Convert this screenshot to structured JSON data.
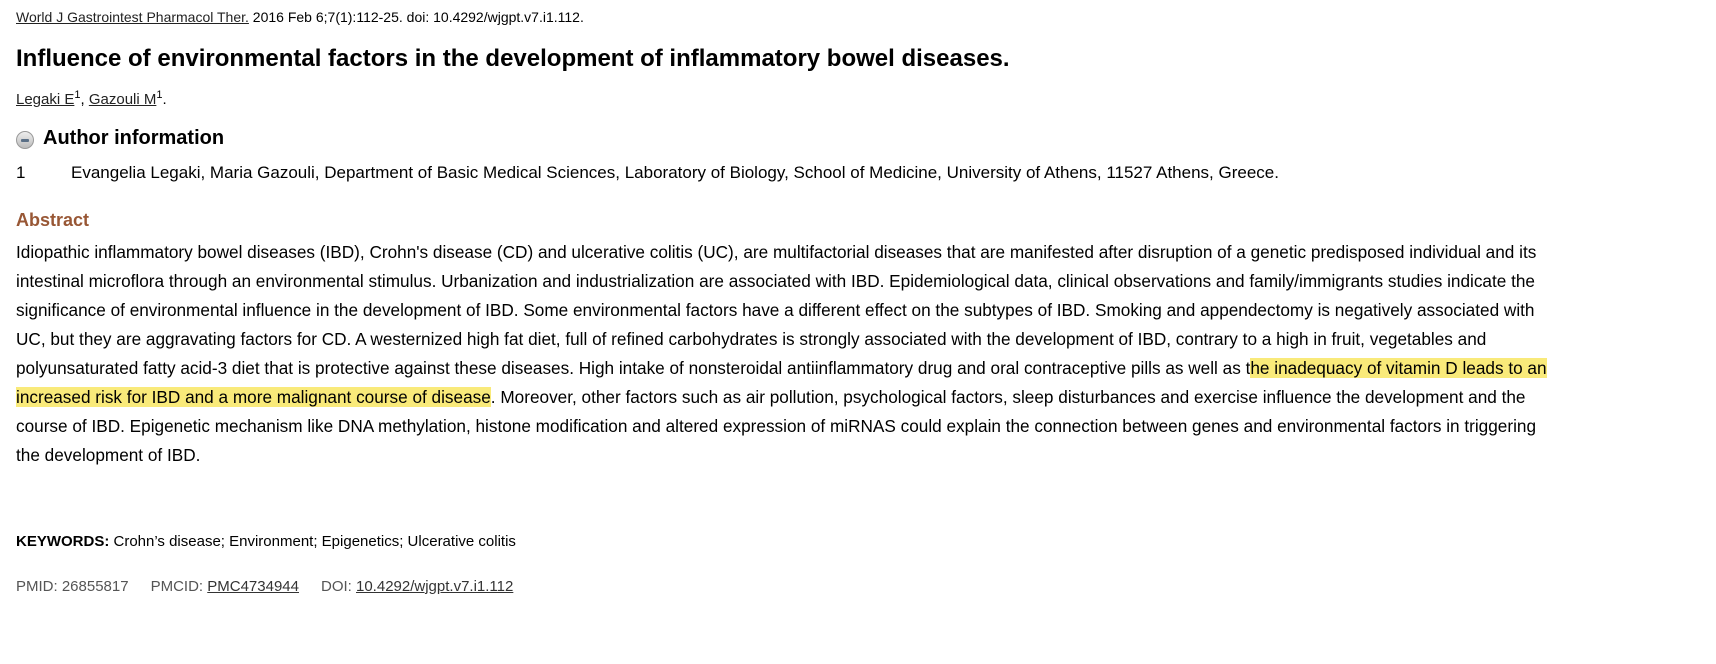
{
  "citation": {
    "journal": "World J Gastrointest Pharmacol Ther.",
    "details": " 2016 Feb 6;7(1):112-25. doi: 10.4292/wjgpt.v7.i1.112."
  },
  "title": "Influence of environmental factors in the development of inflammatory bowel diseases.",
  "authors": [
    {
      "name": "Legaki E",
      "sup": "1"
    },
    {
      "name": "Gazouli M",
      "sup": "1"
    }
  ],
  "author_info": {
    "label": "Author information",
    "icon": "collapse-minus-icon",
    "affiliations": [
      {
        "num": "1",
        "text": "Evangelia Legaki, Maria Gazouli, Department of Basic Medical Sciences, Laboratory of Biology, School of Medicine, University of Athens, 11527 Athens, Greece."
      }
    ]
  },
  "abstract": {
    "heading": "Abstract",
    "before": "Idiopathic inflammatory bowel diseases (IBD), Crohn's disease (CD) and ulcerative colitis (UC), are multifactorial diseases that are manifested after disruption of a genetic predisposed individual and its intestinal microflora through an environmental stimulus. Urbanization and industrialization are associated with IBD. Epidemiological data, clinical observations and family/immigrants studies indicate the significance of environmental influence in the development of IBD. Some environmental factors have a different effect on the subtypes of IBD. Smoking and appendectomy is negatively associated with UC, but they are aggravating factors for CD. A westernized high fat diet, full of refined carbohydrates is strongly associated with the development of IBD, contrary to a high in fruit, vegetables and polyunsaturated fatty acid-3 diet that is protective against these diseases. High intake of nonsteroidal antiinflammatory drug and oral contraceptive pills as well as t",
    "highlight": "he inadequacy of vitamin D leads to an increased risk for IBD and a more malignant course of disease",
    "after": ". Moreover, other factors such as air pollution, psychological factors, sleep disturbances and exercise influence the development and the course of IBD. Epigenetic mechanism like DNA methylation, histone modification and altered expression of miRNAS could explain the connection between genes and environmental factors in triggering the development of IBD.",
    "highlight_color": "#f9ea7a"
  },
  "keywords": {
    "label": "KEYWORDS:",
    "text": " Crohn’s disease; Environment; Epigenetics; Ulcerative colitis"
  },
  "ids": {
    "pmid_label": "PMID: 26855817",
    "pmcid_label": "PMCID: ",
    "pmcid": "PMC4734944",
    "doi_label": "DOI: ",
    "doi": "10.4292/wjgpt.v7.i1.112"
  },
  "colors": {
    "abstract_heading": "#985735"
  }
}
